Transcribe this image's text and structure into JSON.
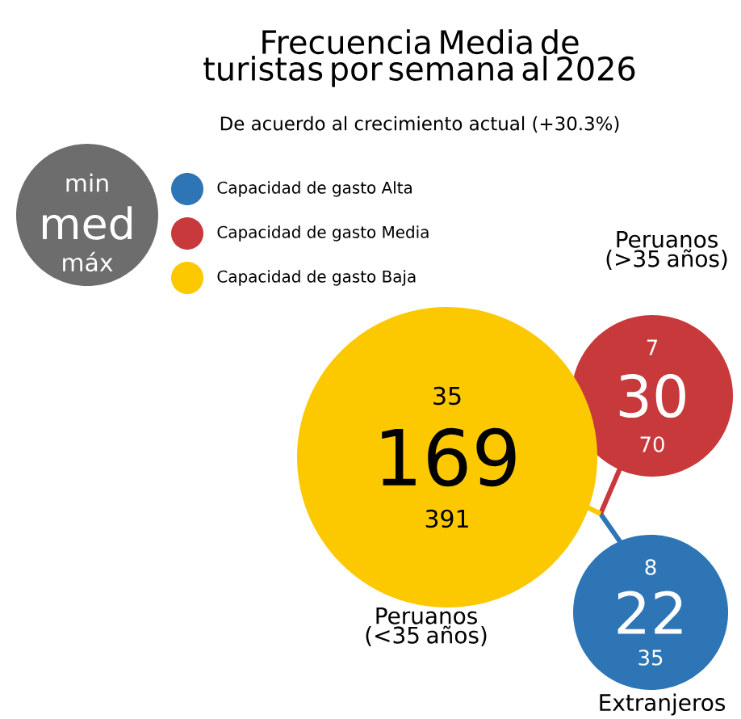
{
  "chart_data": {
    "type": "other",
    "title": "Frecuencia Media de turistas por semana al 2026",
    "subtitle": "De acuerdo al crecimiento actual (+30.3%)",
    "categories": [
      "Peruanos (<35 años)",
      "Peruanos (>35 años)",
      "Extranjeros"
    ],
    "series": [
      {
        "name": "Capacidad de gasto Alta",
        "color": "#2e75b6",
        "values": [
          null,
          null,
          22
        ]
      },
      {
        "name": "Capacidad de gasto Media",
        "color": "#c8393b",
        "values": [
          null,
          30,
          null
        ]
      },
      {
        "name": "Capacidad de gasto Baja",
        "color": "#fcc800",
        "values": [
          169,
          null,
          null
        ]
      }
    ],
    "annotations": [
      "min",
      "med",
      "máx",
      {
        "text": "35",
        "x": "Peruanos (<35 años)"
      },
      {
        "text": "391",
        "x": "Peruanos (<35 años)"
      },
      {
        "text": "7",
        "x": "Peruanos (>35 años)"
      },
      {
        "text": "70",
        "x": "Peruanos (>35 años)"
      },
      {
        "text": "8",
        "x": "Extranjeros"
      },
      {
        "text": "35",
        "x": "Extranjeros"
      }
    ],
    "legend": "top left",
    "data_labels": true
  }
}
